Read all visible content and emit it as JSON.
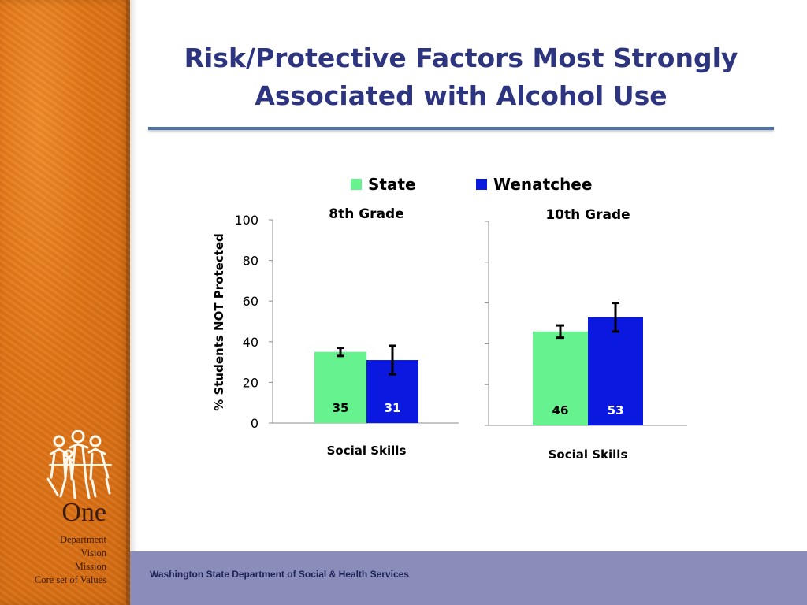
{
  "slide": {
    "title_line1": "Risk/Protective Factors Most Strongly",
    "title_line2": "Associated with Alcohol Use",
    "footer": "Washington State Department of Social & Health Services"
  },
  "brand": {
    "name": "One",
    "lines": [
      "Department",
      "Vision",
      "Mission",
      "Core set of Values"
    ]
  },
  "colors": {
    "state": "#66f28f",
    "wenatchee": "#0a18e0",
    "title": "#2e3580"
  },
  "chart_data": {
    "type": "bar",
    "ylabel": "% Students NOT Protected",
    "ylim": [
      0,
      100
    ],
    "yticks": [
      0,
      20,
      40,
      60,
      80,
      100
    ],
    "legend": [
      "State",
      "Wenatchee"
    ],
    "legend_position": "top",
    "panels": [
      {
        "title": "8th Grade",
        "category": "Social  Skills",
        "series": [
          {
            "name": "State",
            "value": 35,
            "label": "35",
            "err_low": 33,
            "err_high": 37
          },
          {
            "name": "Wenatchee",
            "value": 31,
            "label": "31",
            "err_low": 24,
            "err_high": 38
          }
        ]
      },
      {
        "title": "10th Grade",
        "category": "Social  Skills",
        "series": [
          {
            "name": "State",
            "value": 46,
            "label": "46",
            "err_low": 43,
            "err_high": 49
          },
          {
            "name": "Wenatchee",
            "value": 53,
            "label": "53",
            "err_low": 46,
            "err_high": 60
          }
        ]
      }
    ]
  }
}
